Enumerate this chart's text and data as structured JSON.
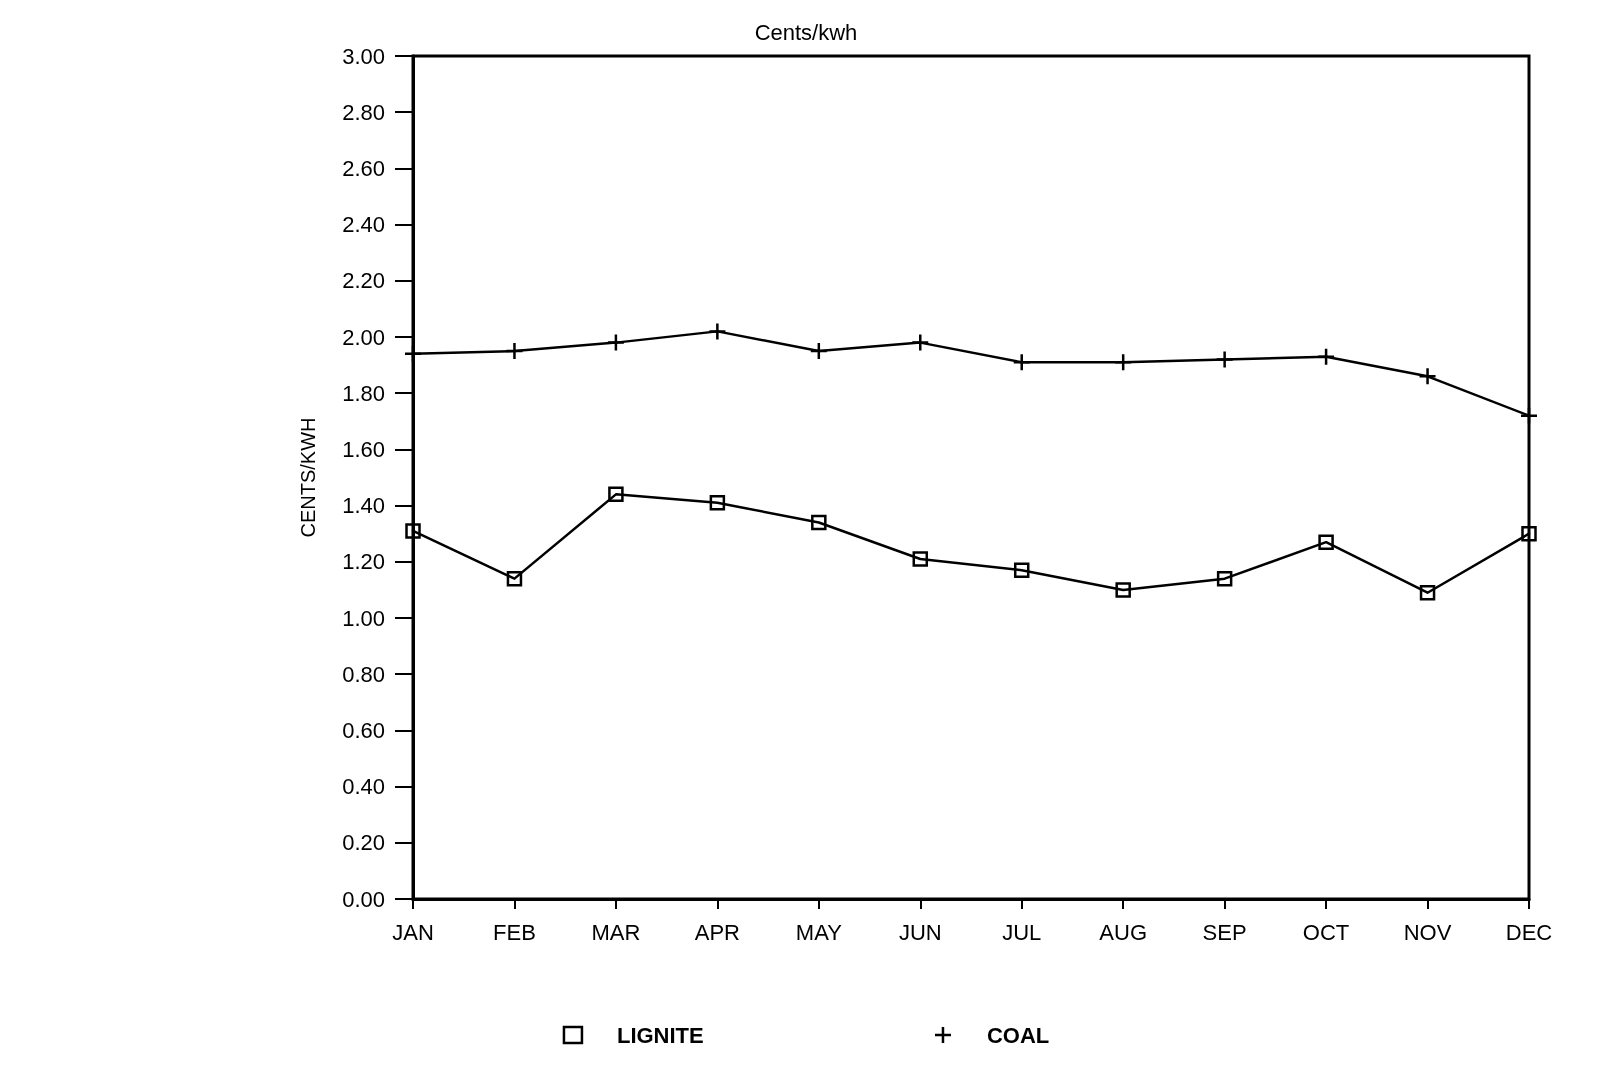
{
  "chart_data": {
    "type": "line",
    "title": "Cents/kwh",
    "ylabel": "CENTS/KWH",
    "categories": [
      "JAN",
      "FEB",
      "MAR",
      "APR",
      "MAY",
      "JUN",
      "JUL",
      "AUG",
      "SEP",
      "OCT",
      "NOV",
      "DEC"
    ],
    "series": [
      {
        "name": "LIGNITE",
        "color": "#000000",
        "marker": "square",
        "values": [
          1.31,
          1.14,
          1.44,
          1.41,
          1.34,
          1.21,
          1.17,
          1.1,
          1.14,
          1.27,
          1.09,
          1.3
        ]
      },
      {
        "name": "COAL",
        "color": "#000000",
        "marker": "cross",
        "values": [
          1.94,
          1.95,
          1.98,
          2.02,
          1.95,
          1.98,
          1.91,
          1.91,
          1.92,
          1.93,
          1.86,
          1.72
        ]
      }
    ],
    "ylim": [
      0,
      3
    ],
    "yticks": [
      {
        "value": 0,
        "label": "0.00"
      },
      {
        "value": 0.2,
        "label": "0.20"
      },
      {
        "value": 0.4,
        "label": "0.40"
      },
      {
        "value": 0.6,
        "label": "0.60"
      },
      {
        "value": 0.8,
        "label": "0.80"
      },
      {
        "value": 1,
        "label": "1.00"
      },
      {
        "value": 1.2,
        "label": "1.20"
      },
      {
        "value": 1.4,
        "label": "1.40"
      },
      {
        "value": 1.6,
        "label": "1.60"
      },
      {
        "value": 1.8,
        "label": "1.80"
      },
      {
        "value": 2,
        "label": "2.00"
      },
      {
        "value": 2.2,
        "label": "2.20"
      },
      {
        "value": 2.4,
        "label": "2.40"
      },
      {
        "value": 2.6,
        "label": "2.60"
      },
      {
        "value": 2.8,
        "label": "2.80"
      },
      {
        "value": 3,
        "label": "3.00"
      }
    ],
    "grid": false,
    "legend": "bottom",
    "line_style": "solid"
  }
}
